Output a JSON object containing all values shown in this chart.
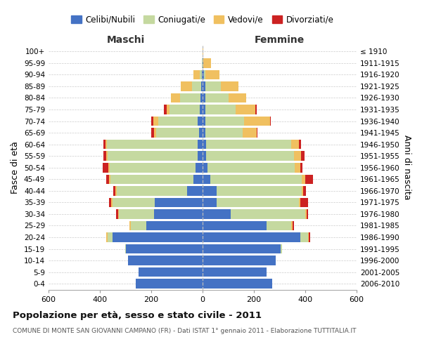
{
  "age_groups": [
    "0-4",
    "5-9",
    "10-14",
    "15-19",
    "20-24",
    "25-29",
    "30-34",
    "35-39",
    "40-44",
    "45-49",
    "50-54",
    "55-59",
    "60-64",
    "65-69",
    "70-74",
    "75-79",
    "80-84",
    "85-89",
    "90-94",
    "95-99",
    "100+"
  ],
  "birth_years": [
    "2006-2010",
    "2001-2005",
    "1996-2000",
    "1991-1995",
    "1986-1990",
    "1981-1985",
    "1976-1980",
    "1971-1975",
    "1966-1970",
    "1961-1965",
    "1956-1960",
    "1951-1955",
    "1946-1950",
    "1941-1945",
    "1936-1940",
    "1931-1935",
    "1926-1930",
    "1921-1925",
    "1916-1920",
    "1911-1915",
    "≤ 1910"
  ],
  "colors": {
    "celibe": "#4472c4",
    "coniugato": "#c5d9a0",
    "vedovo": "#f0c060",
    "divorziato": "#cc2222"
  },
  "maschi": {
    "celibe": [
      260,
      250,
      290,
      300,
      350,
      220,
      190,
      185,
      60,
      35,
      28,
      20,
      18,
      15,
      18,
      10,
      8,
      5,
      2,
      0,
      0
    ],
    "coniugato": [
      0,
      0,
      0,
      2,
      20,
      60,
      135,
      165,
      275,
      325,
      335,
      350,
      355,
      165,
      155,
      120,
      80,
      35,
      8,
      2,
      0
    ],
    "vedovo": [
      0,
      0,
      0,
      0,
      5,
      5,
      5,
      5,
      5,
      5,
      5,
      5,
      5,
      10,
      20,
      10,
      35,
      45,
      25,
      2,
      0
    ],
    "divorziato": [
      0,
      0,
      0,
      0,
      0,
      0,
      8,
      10,
      8,
      10,
      22,
      12,
      8,
      10,
      8,
      12,
      0,
      0,
      0,
      0,
      0
    ]
  },
  "femmine": {
    "nubile": [
      270,
      250,
      285,
      305,
      380,
      250,
      110,
      55,
      55,
      30,
      18,
      15,
      15,
      10,
      12,
      10,
      10,
      10,
      5,
      2,
      0
    ],
    "coniugata": [
      0,
      0,
      0,
      5,
      30,
      95,
      290,
      320,
      330,
      355,
      340,
      340,
      330,
      145,
      150,
      120,
      90,
      60,
      5,
      0,
      0
    ],
    "vedova": [
      0,
      0,
      0,
      0,
      5,
      5,
      5,
      5,
      8,
      15,
      22,
      28,
      30,
      55,
      100,
      75,
      70,
      70,
      55,
      30,
      2
    ],
    "divorziata": [
      0,
      0,
      0,
      0,
      5,
      5,
      5,
      30,
      10,
      30,
      10,
      15,
      8,
      5,
      5,
      5,
      0,
      0,
      0,
      0,
      0
    ]
  },
  "xlim": 600,
  "title": "Popolazione per età, sesso e stato civile - 2011",
  "subtitle": "COMUNE DI MONTE SAN GIOVANNI CAMPANO (FR) - Dati ISTAT 1° gennaio 2011 - Elaborazione TUTTITALIA.IT",
  "ylabel_left": "Fasce di età",
  "xlabel_left": "Maschi",
  "xlabel_right": "Femmine",
  "ylabel_right": "Anni di nascita"
}
